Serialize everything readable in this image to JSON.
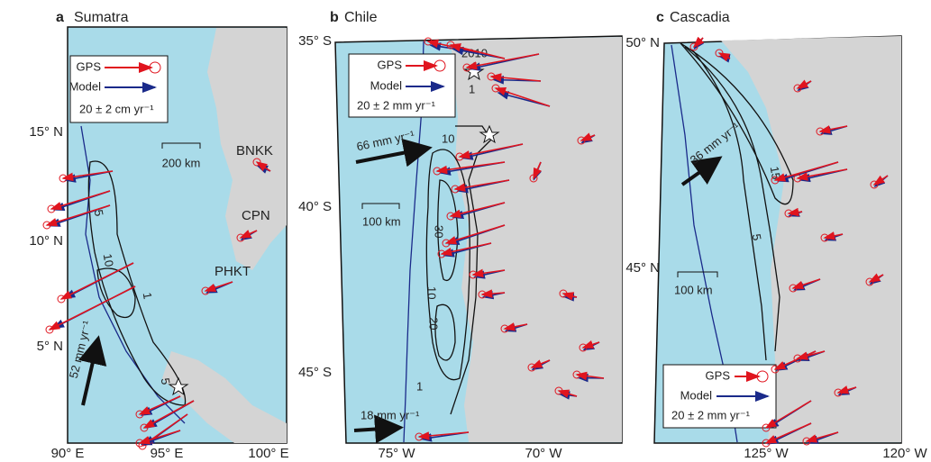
{
  "panels": [
    {
      "letter": "a",
      "name": "Sumatra",
      "lat_labels": [
        "15° N",
        "10° N",
        "5° N"
      ],
      "lon_labels": [
        "90° E",
        "95° E",
        "100° E"
      ],
      "legend": {
        "gps": "GPS",
        "model": "Model",
        "scale": "20 ± 2 cm yr⁻¹"
      },
      "scale_bar": "200 km",
      "stations": [
        "BNKK",
        "CPN",
        "PHKT"
      ],
      "contours": [
        "5",
        "10",
        "1",
        "5"
      ],
      "rate": "52 mm yr⁻¹"
    },
    {
      "letter": "b",
      "name": "Chile",
      "lat_labels": [
        "35° S",
        "40° S",
        "45° S"
      ],
      "lon_labels": [
        "75° W",
        "70° W"
      ],
      "legend": {
        "gps": "GPS",
        "model": "Model",
        "scale": "20 ± 2 mm yr⁻¹"
      },
      "scale_bar": "100 km",
      "event": "2010",
      "contours": [
        "1",
        "10",
        "30",
        "10",
        "20",
        "1"
      ],
      "rates": [
        "66 mm yr⁻¹",
        "18 mm yr⁻¹"
      ]
    },
    {
      "letter": "c",
      "name": "Cascadia",
      "lat_labels": [
        "50° N",
        "45° N"
      ],
      "lon_labels": [
        "125° W",
        "120° W"
      ],
      "legend": {
        "gps": "GPS",
        "model": "Model",
        "scale": "20 ± 2 mm yr⁻¹"
      },
      "scale_bar": "100 km",
      "contours": [
        "15",
        "5"
      ],
      "rate": "36 mm yr⁻¹"
    }
  ]
}
